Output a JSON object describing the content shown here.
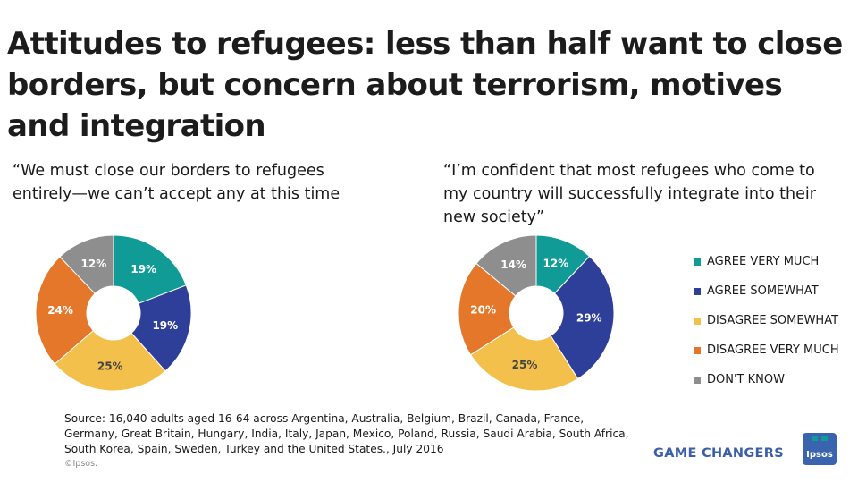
{
  "title": "Attitudes to refugees: less than half want to close borders, but concern about terrorism, motives and integration",
  "chart_data": [
    {
      "type": "pie",
      "donut": true,
      "title": "“We must close our borders to refugees entirely—we can’t accept any at this time",
      "categories": [
        "AGREE VERY MUCH",
        "AGREE SOMEWHAT",
        "DISAGREE SOMEWHAT",
        "DISAGREE VERY MUCH",
        "DON'T KNOW"
      ],
      "values": [
        19,
        19,
        25,
        24,
        12
      ],
      "value_labels": [
        "19%",
        "19%",
        "25%",
        "24%",
        "12%"
      ]
    },
    {
      "type": "pie",
      "donut": true,
      "title": "“I’m confident that most refugees who come to my country will successfully integrate into their new society”",
      "categories": [
        "AGREE VERY MUCH",
        "AGREE SOMEWHAT",
        "DISAGREE SOMEWHAT",
        "DISAGREE VERY MUCH",
        "DON'T KNOW"
      ],
      "values": [
        12,
        29,
        25,
        20,
        14
      ],
      "value_labels": [
        "12%",
        "29%",
        "25%",
        "20%",
        "14%"
      ]
    }
  ],
  "legend": [
    {
      "label": "AGREE VERY MUCH",
      "color": "#119b96"
    },
    {
      "label": "AGREE SOMEWHAT",
      "color": "#2d3f99"
    },
    {
      "label": "DISAGREE SOMEWHAT",
      "color": "#f3c04c"
    },
    {
      "label": "DISAGREE VERY MUCH",
      "color": "#e5772b"
    },
    {
      "label": "DON'T KNOW",
      "color": "#8e8e8e"
    }
  ],
  "label_colors": [
    "#ffffff",
    "#ffffff",
    "#444444",
    "#ffffff",
    "#ffffff"
  ],
  "source": "Source: 16,040 adults aged 16-64 across  Argentina, Australia, Belgium, Brazil, Canada, France, Germany, Great Britain, Hungary, India, Italy, Japan, Mexico, Poland, Russia, Saudi Arabia, South Africa, South Korea, Spain, Sweden, Turkey and the United States., July 2016",
  "copyright": "©Ipsos.",
  "footer_brand": "GAME CHANGERS",
  "logo_text": "Ipsos"
}
